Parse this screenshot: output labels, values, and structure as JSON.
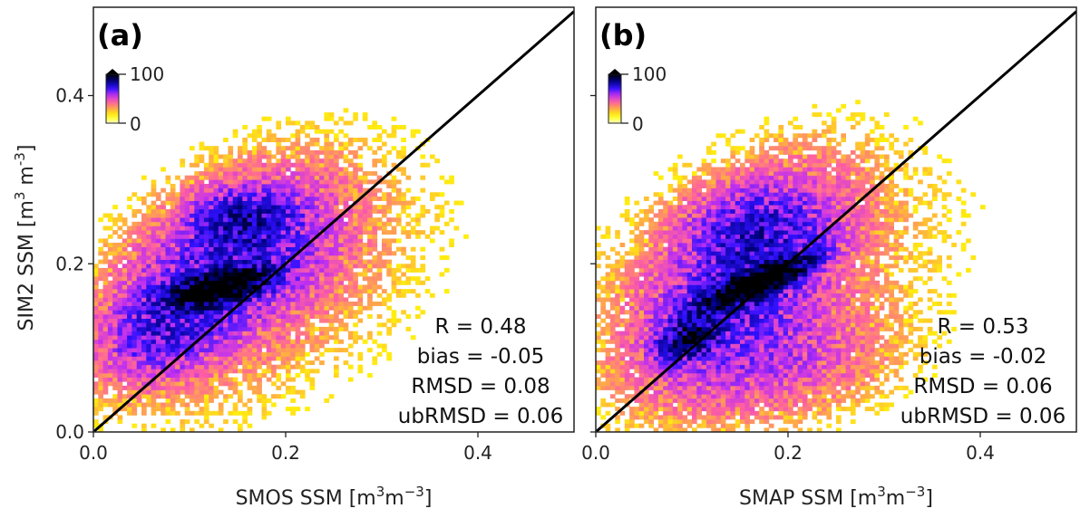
{
  "chart_data": [
    {
      "type": "heatmap",
      "panel_label": "(a)",
      "xlabel": "SMOS SSM [m³m⁻³]",
      "xlabel_parts": {
        "base": "SMOS SSM [m",
        "sup1": "3",
        "mid": "m",
        "sup2": "−3",
        "end": "]"
      },
      "ylabel": "SIM2 SSM [m³ m⁻³]",
      "ylabel_parts": {
        "base": "SIM2 SSM [m",
        "sup1": "3",
        "mid": " m",
        "sup2": "-3",
        "end": "]"
      },
      "xlim": [
        0,
        0.5
      ],
      "ylim": [
        0,
        0.505
      ],
      "xticks": [
        {
          "v": 0.0,
          "label": "0.0"
        },
        {
          "v": 0.2,
          "label": "0.2"
        },
        {
          "v": 0.4,
          "label": "0.4"
        }
      ],
      "yticks": [
        {
          "v": 0.0,
          "label": "0.0"
        },
        {
          "v": 0.2,
          "label": "0.2"
        },
        {
          "v": 0.4,
          "label": "0.4"
        }
      ],
      "one_to_one_line": true,
      "colorbar": {
        "min_label": "0",
        "max_label": "100",
        "min": 0,
        "max": 100,
        "extend": "max",
        "position": "top-left"
      },
      "stats": [
        "R = 0.48",
        "bias = -0.05",
        "RMSD = 0.08",
        "ubRMSD = 0.06"
      ],
      "density_regions": [
        {
          "cx": 0.13,
          "cy": 0.17,
          "sx": 0.028,
          "sy": 0.011,
          "slope": 0.25,
          "peak": 160
        },
        {
          "cx": 0.14,
          "cy": 0.2,
          "sx": 0.065,
          "sy": 0.055,
          "slope": 0.4,
          "peak": 22
        },
        {
          "cx": 0.155,
          "cy": 0.25,
          "sx": 0.03,
          "sy": 0.02,
          "slope": 0.0,
          "peak": 30
        },
        {
          "cx": 0.07,
          "cy": 0.12,
          "sx": 0.04,
          "sy": 0.035,
          "slope": 0.3,
          "peak": 18
        },
        {
          "cx": 0.17,
          "cy": 0.17,
          "sx": 0.12,
          "sy": 0.1,
          "slope": 0.4,
          "peak": 4
        }
      ]
    },
    {
      "type": "heatmap",
      "panel_label": "(b)",
      "xlabel": "SMAP SSM [m³m⁻³]",
      "xlabel_parts": {
        "base": "SMAP SSM [m",
        "sup1": "3",
        "mid": "m",
        "sup2": "−3",
        "end": "]"
      },
      "xlim": [
        0,
        0.5
      ],
      "ylim": [
        0,
        0.505
      ],
      "xticks": [
        {
          "v": 0.0,
          "label": "0.0"
        },
        {
          "v": 0.2,
          "label": "0.2"
        },
        {
          "v": 0.4,
          "label": "0.4"
        }
      ],
      "yticks": [
        {
          "v": 0.0,
          "label": ""
        },
        {
          "v": 0.2,
          "label": ""
        },
        {
          "v": 0.4,
          "label": ""
        }
      ],
      "one_to_one_line": true,
      "colorbar": {
        "min_label": "0",
        "max_label": "100",
        "min": 0,
        "max": 100,
        "extend": "max",
        "position": "top-left"
      },
      "stats": [
        "R = 0.53",
        "bias = -0.02",
        "RMSD = 0.06",
        "ubRMSD = 0.06"
      ],
      "density_regions": [
        {
          "cx": 0.165,
          "cy": 0.175,
          "sx": 0.03,
          "sy": 0.01,
          "slope": 0.45,
          "peak": 170
        },
        {
          "cx": 0.095,
          "cy": 0.11,
          "sx": 0.018,
          "sy": 0.014,
          "slope": 0.3,
          "peak": 60
        },
        {
          "cx": 0.15,
          "cy": 0.18,
          "sx": 0.06,
          "sy": 0.06,
          "slope": 0.6,
          "peak": 24
        },
        {
          "cx": 0.16,
          "cy": 0.24,
          "sx": 0.04,
          "sy": 0.03,
          "slope": 0.0,
          "peak": 16
        },
        {
          "cx": 0.19,
          "cy": 0.08,
          "sx": 0.07,
          "sy": 0.04,
          "slope": 0.1,
          "peak": 8
        },
        {
          "cx": 0.17,
          "cy": 0.18,
          "sx": 0.13,
          "sy": 0.1,
          "slope": 0.3,
          "peak": 4
        }
      ]
    }
  ],
  "colors": {
    "colormap": [
      "#ffffc8",
      "#ffff00",
      "#ffb040",
      "#ff60a0",
      "#c030f0",
      "#3010ff",
      "#000080",
      "#000000"
    ],
    "one_to_one_line": "#000000",
    "axes": "#222222"
  }
}
